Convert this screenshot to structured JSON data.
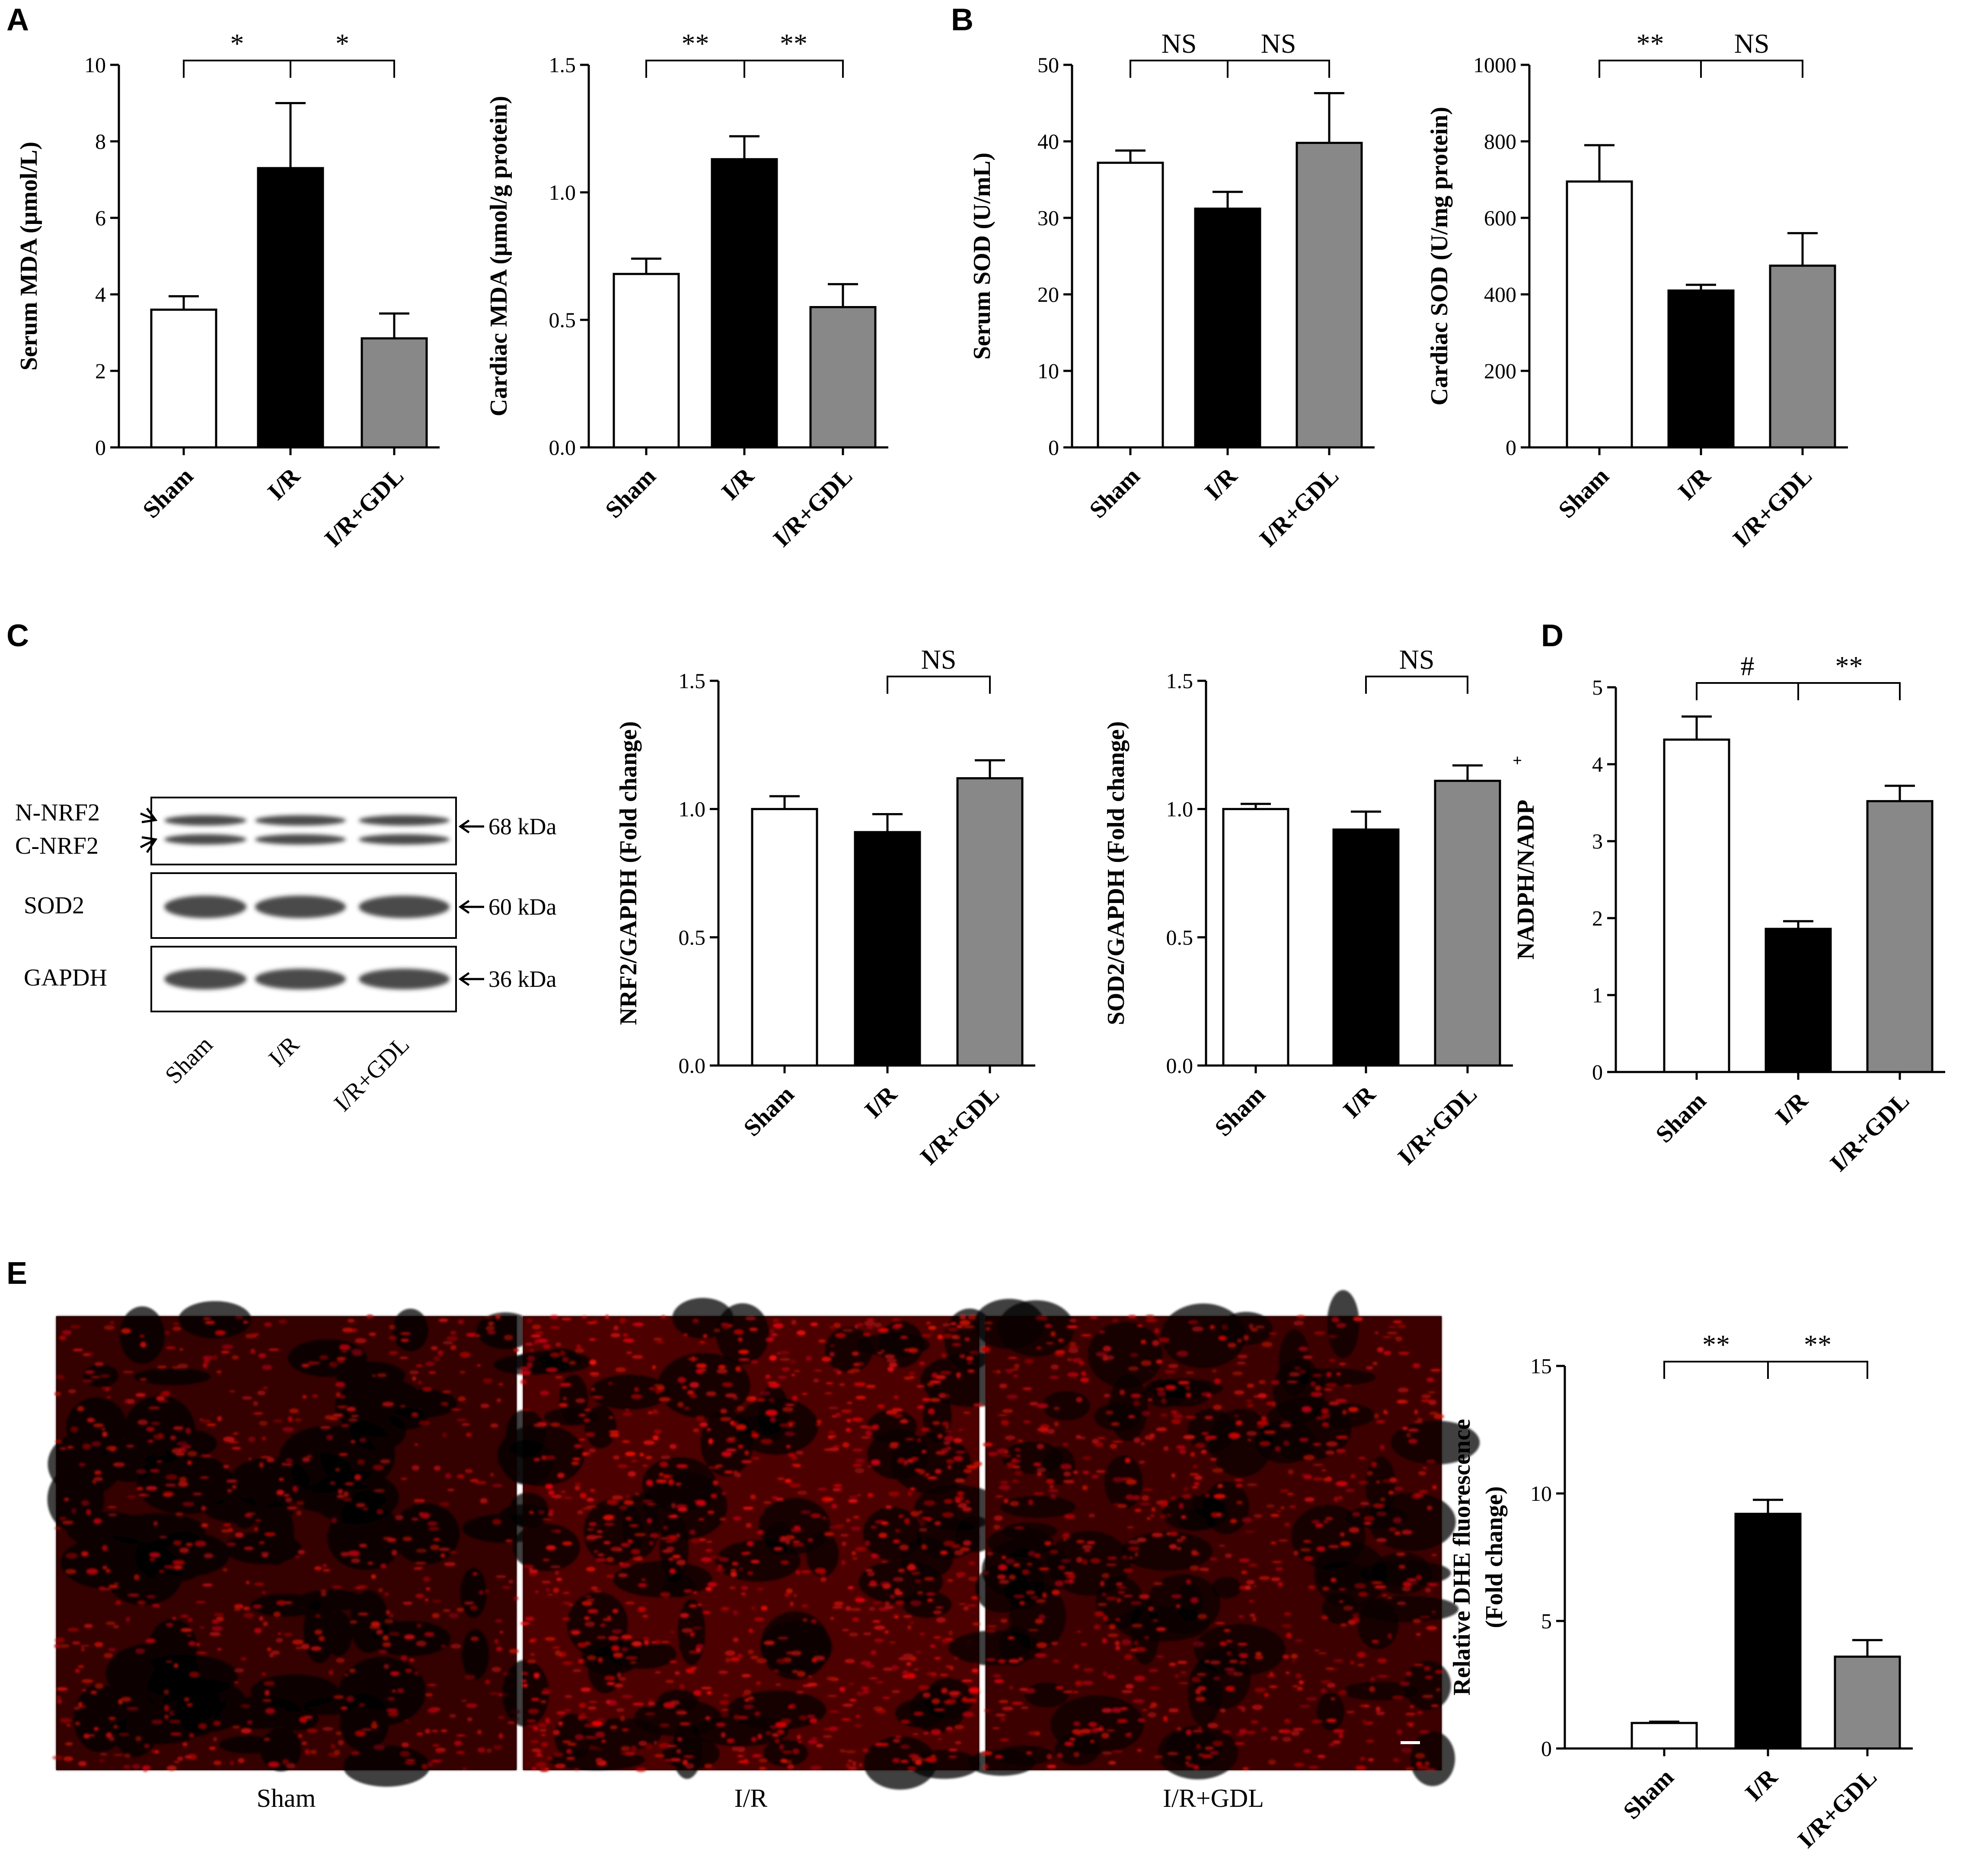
{
  "panel_labels": [
    "A",
    "B",
    "C",
    "D",
    "E"
  ],
  "groups": [
    "Sham",
    "I/R",
    "I/R+GDL"
  ],
  "colors": {
    "Sham": "#ffffff",
    "I/R": "#000000",
    "I/R+GDL": "#888888",
    "stain": "#d81010"
  },
  "chart_data": [
    {
      "type": "bar",
      "panel": "A",
      "categories": [
        "Sham",
        "I/R",
        "I/R+GDL"
      ],
      "values": [
        3.6,
        7.3,
        2.85
      ],
      "errors": [
        0.35,
        1.7,
        0.65
      ],
      "ylabel": "Serum MDA (μmol/L)",
      "ylim": [
        0,
        10
      ],
      "yticks": [
        "0",
        "2",
        "4",
        "6",
        "8",
        "10"
      ],
      "significance": [
        {
          "from": 0,
          "to": 1,
          "label": "*"
        },
        {
          "from": 1,
          "to": 2,
          "label": "*"
        }
      ]
    },
    {
      "type": "bar",
      "panel": "A",
      "categories": [
        "Sham",
        "I/R",
        "I/R+GDL"
      ],
      "values": [
        0.68,
        1.13,
        0.55
      ],
      "errors": [
        0.06,
        0.09,
        0.09
      ],
      "ylabel": "Cardiac MDA (μmol/g protein)",
      "ylim": [
        0,
        1.5
      ],
      "yticks": [
        "0.0",
        "0.5",
        "1.0",
        "1.5"
      ],
      "significance": [
        {
          "from": 0,
          "to": 1,
          "label": "**"
        },
        {
          "from": 1,
          "to": 2,
          "label": "**"
        }
      ]
    },
    {
      "type": "bar",
      "panel": "B",
      "categories": [
        "Sham",
        "I/R",
        "I/R+GDL"
      ],
      "values": [
        37.2,
        31.2,
        39.8
      ],
      "errors": [
        1.6,
        2.2,
        6.5
      ],
      "ylabel": "Serum SOD (U/mL)",
      "ylim": [
        0,
        50
      ],
      "yticks": [
        "0",
        "10",
        "20",
        "30",
        "40",
        "50"
      ],
      "significance": [
        {
          "from": 0,
          "to": 1,
          "label": "NS"
        },
        {
          "from": 1,
          "to": 2,
          "label": "NS"
        }
      ]
    },
    {
      "type": "bar",
      "panel": "B",
      "categories": [
        "Sham",
        "I/R",
        "I/R+GDL"
      ],
      "values": [
        695,
        410,
        475
      ],
      "errors": [
        95,
        15,
        85
      ],
      "ylabel": "Cardiac SOD (U/mg protein)",
      "ylim": [
        0,
        1000
      ],
      "yticks": [
        "0",
        "200",
        "400",
        "600",
        "800",
        "1000"
      ],
      "significance": [
        {
          "from": 0,
          "to": 1,
          "label": "**"
        },
        {
          "from": 1,
          "to": 2,
          "label": "NS"
        }
      ]
    },
    {
      "type": "bar",
      "panel": "C",
      "categories": [
        "Sham",
        "I/R",
        "I/R+GDL"
      ],
      "values": [
        1.0,
        0.91,
        1.12
      ],
      "errors": [
        0.05,
        0.07,
        0.07
      ],
      "ylabel": "NRF2/GAPDH (Fold change)",
      "ylim": [
        0,
        1.5
      ],
      "yticks": [
        "0.0",
        "0.5",
        "1.0",
        "1.5"
      ],
      "significance": [
        {
          "from": 1,
          "to": 2,
          "label": "NS"
        }
      ]
    },
    {
      "type": "bar",
      "panel": "C",
      "categories": [
        "Sham",
        "I/R",
        "I/R+GDL"
      ],
      "values": [
        1.0,
        0.92,
        1.11
      ],
      "errors": [
        0.02,
        0.07,
        0.06
      ],
      "ylabel": "SOD2/GAPDH (Fold change)",
      "ylim": [
        0,
        1.5
      ],
      "yticks": [
        "0.0",
        "0.5",
        "1.0",
        "1.5"
      ],
      "significance": [
        {
          "from": 1,
          "to": 2,
          "label": "NS"
        }
      ]
    },
    {
      "type": "bar",
      "panel": "D",
      "categories": [
        "Sham",
        "I/R",
        "I/R+GDL"
      ],
      "values": [
        4.32,
        1.86,
        3.52
      ],
      "errors": [
        0.3,
        0.1,
        0.2
      ],
      "ylabel": "NADPH/NADP",
      "ylabel_sup": "+",
      "ylim": [
        0,
        5
      ],
      "yticks": [
        "0",
        "1",
        "2",
        "3",
        "4",
        "5"
      ],
      "significance": [
        {
          "from": 0,
          "to": 1,
          "label": "#"
        },
        {
          "from": 1,
          "to": 2,
          "label": "**"
        }
      ]
    },
    {
      "type": "bar",
      "panel": "E",
      "categories": [
        "Sham",
        "I/R",
        "I/R+GDL"
      ],
      "values": [
        1.0,
        9.2,
        3.6
      ],
      "errors": [
        0.05,
        0.55,
        0.65
      ],
      "ylabel": "Relative DHE fluorescence",
      "ylabel2": "(Fold change)",
      "ylim": [
        0,
        15
      ],
      "yticks": [
        "0",
        "5",
        "10",
        "15"
      ],
      "significance": [
        {
          "from": 0,
          "to": 1,
          "label": "**"
        },
        {
          "from": 1,
          "to": 2,
          "label": "**"
        }
      ]
    }
  ],
  "blot": {
    "rows": [
      {
        "labels": [
          "N-NRF2",
          "C-NRF2"
        ],
        "kda": "68 kDa"
      },
      {
        "labels": [
          "SOD2"
        ],
        "kda": "60 kDa"
      },
      {
        "labels": [
          "GAPDH"
        ],
        "kda": "36 kDa"
      }
    ],
    "lanes": [
      "Sham",
      "I/R",
      "I/R+GDL"
    ]
  },
  "micrographs": {
    "captions": [
      "Sham",
      "I/R",
      "I/R+GDL"
    ]
  }
}
